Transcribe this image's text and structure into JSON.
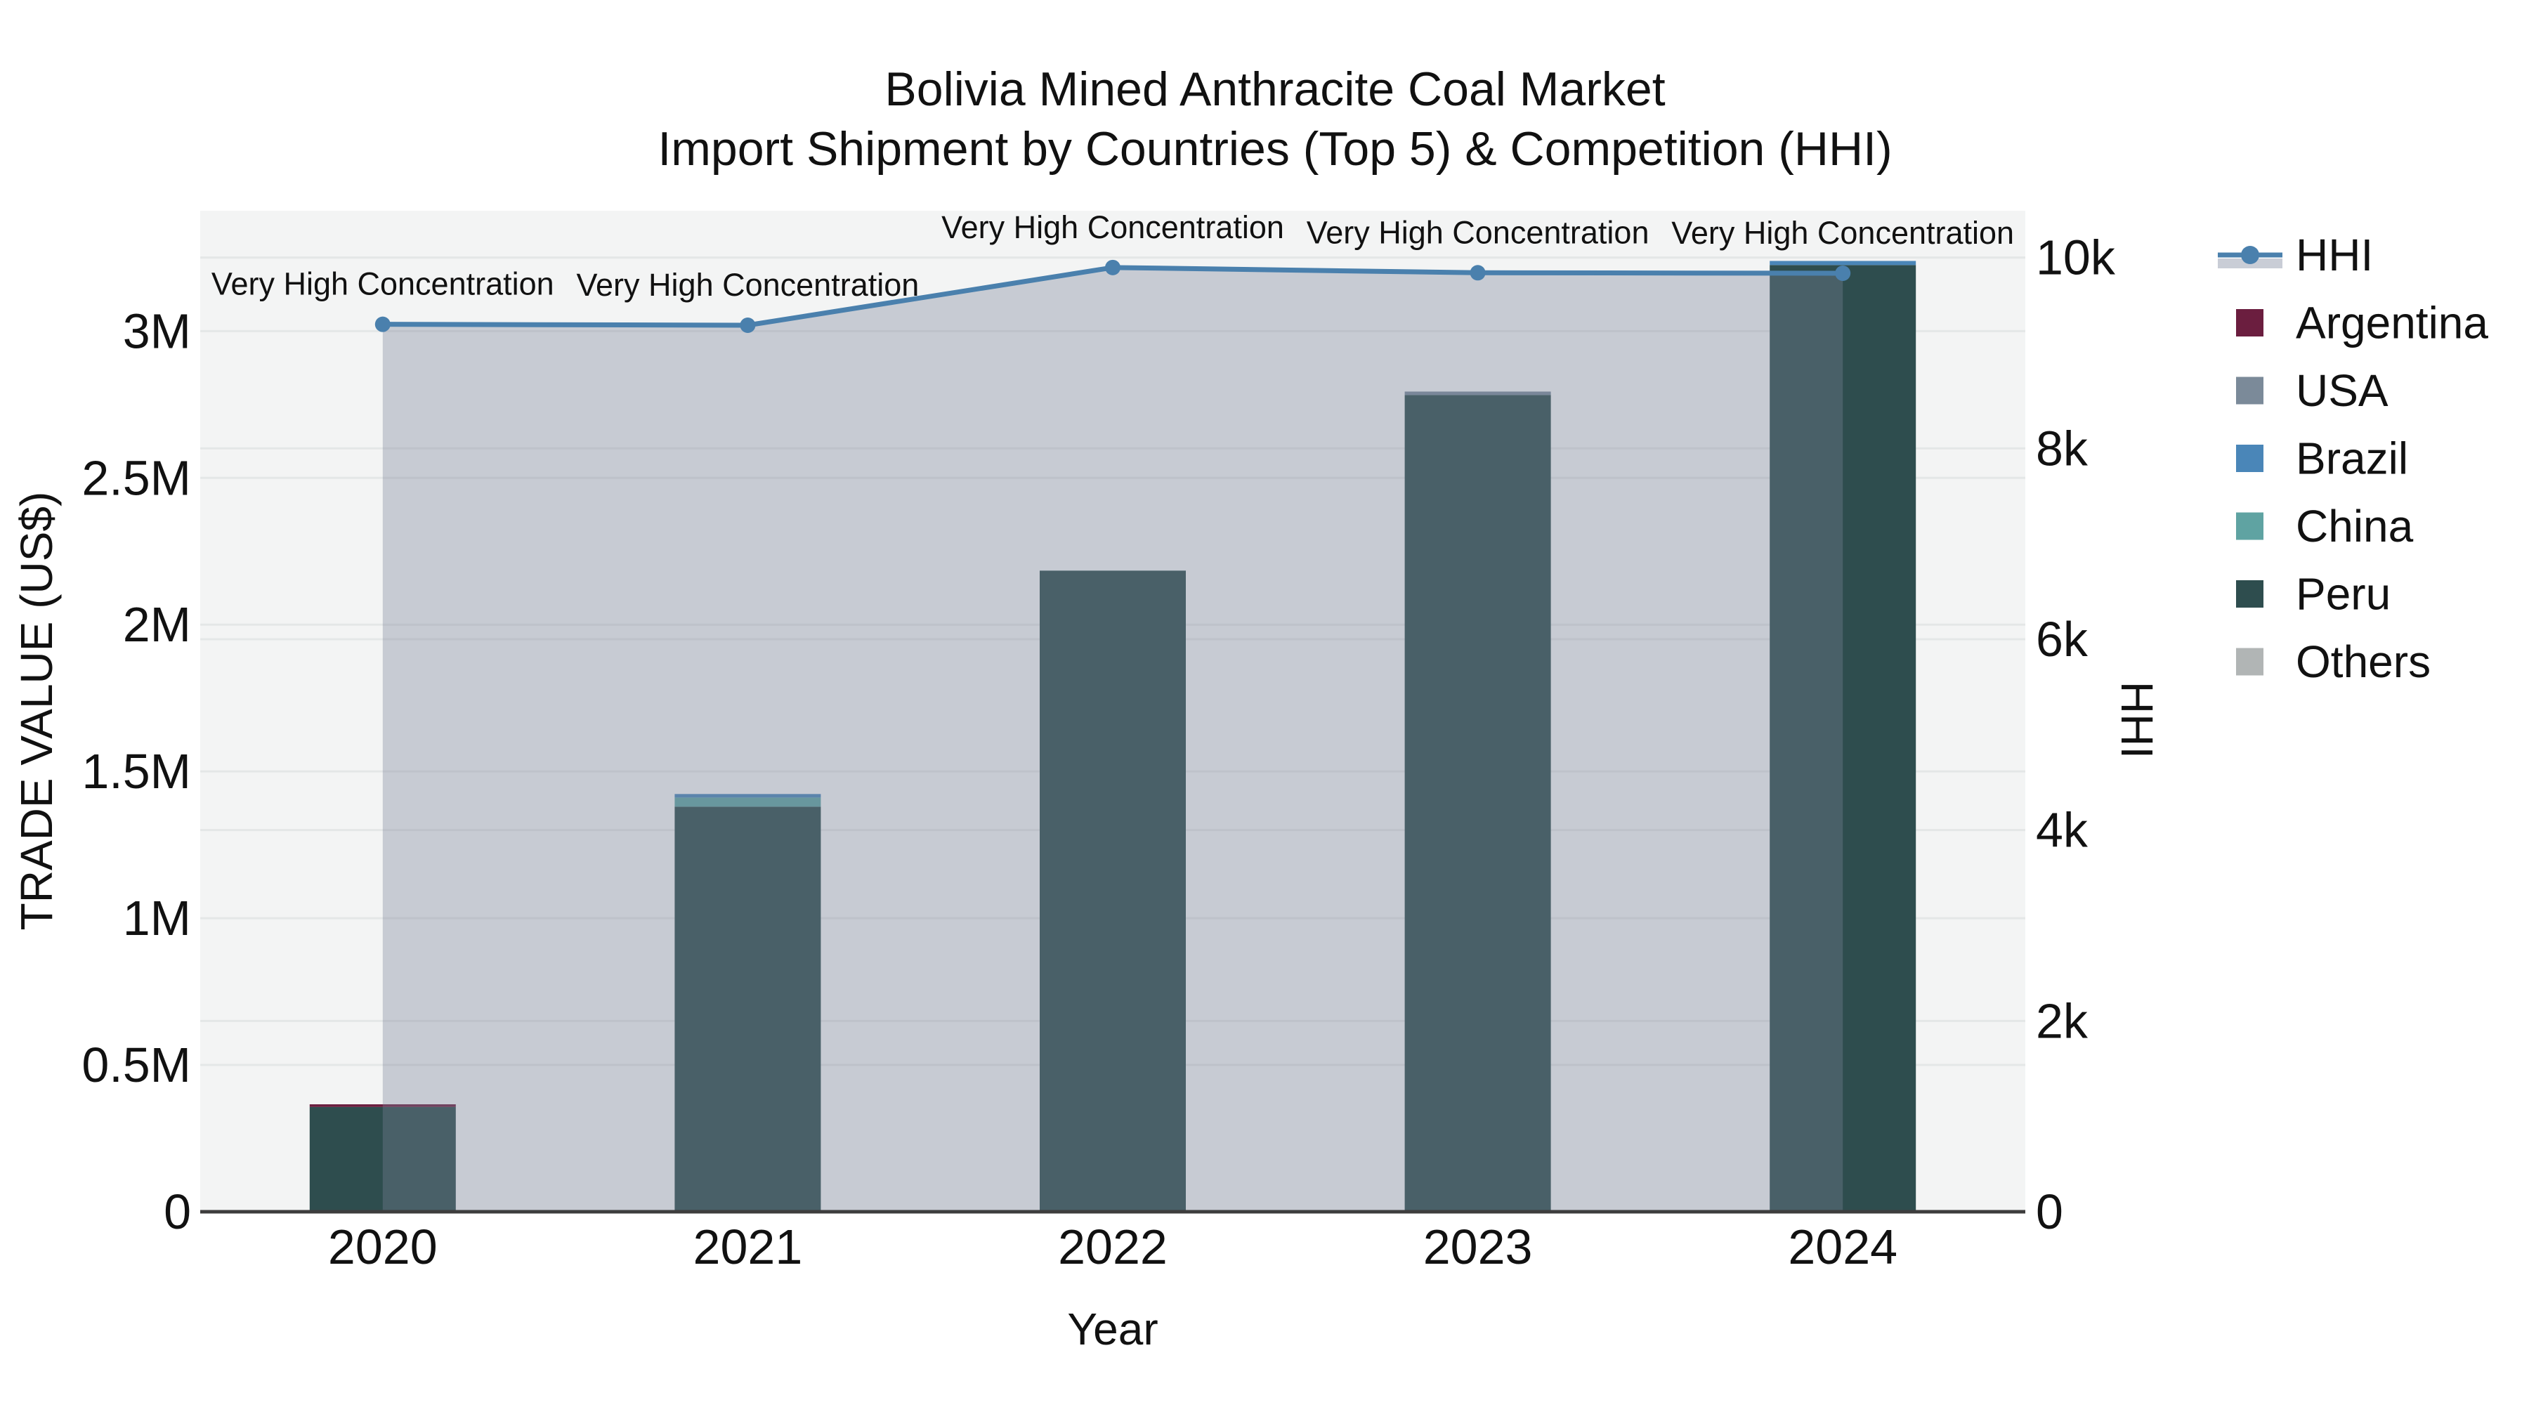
{
  "title": {
    "line1": "Bolivia Mined Anthracite Coal Market",
    "line2": "Import Shipment by Countries (Top 5) & Competition (HHI)"
  },
  "axes": {
    "x": {
      "title": "Year",
      "categories": [
        "2020",
        "2021",
        "2022",
        "2023",
        "2024"
      ]
    },
    "y_left": {
      "title": "TRADE VALUE (US$)",
      "tick_labels": [
        "0",
        "0.5M",
        "1M",
        "1.5M",
        "2M",
        "2.5M",
        "3M"
      ],
      "tick_values": [
        0,
        500000,
        1000000,
        1500000,
        2000000,
        2500000,
        3000000
      ],
      "range": [
        0,
        3410000
      ]
    },
    "y_right": {
      "title": "HHI",
      "tick_labels": [
        "0",
        "2k",
        "4k",
        "6k",
        "8k",
        "10k"
      ],
      "tick_values": [
        0,
        2000,
        4000,
        6000,
        8000,
        10000
      ],
      "range": [
        0,
        10490
      ]
    }
  },
  "chart_data": {
    "type": [
      "bar",
      "line"
    ],
    "bar_mode": "stacked",
    "categories": [
      "2020",
      "2021",
      "2022",
      "2023",
      "2024"
    ],
    "bar_series": [
      {
        "name": "Argentina",
        "color": "#6b1e3f",
        "values": [
          9000,
          0,
          0,
          0,
          0
        ]
      },
      {
        "name": "USA",
        "color": "#7b8a99",
        "values": [
          0,
          0,
          0,
          12000,
          0
        ]
      },
      {
        "name": "Brazil",
        "color": "#4a86b8",
        "values": [
          0,
          12000,
          0,
          0,
          14000
        ]
      },
      {
        "name": "China",
        "color": "#5fa3a2",
        "values": [
          0,
          31000,
          0,
          0,
          0
        ]
      },
      {
        "name": "Peru",
        "color": "#2e4d4e",
        "values": [
          357000,
          1380000,
          2184000,
          2782000,
          3225000
        ]
      },
      {
        "name": "Others",
        "color": "#b1b5b5",
        "values": [
          0,
          0,
          0,
          0,
          0
        ]
      }
    ],
    "bar_totals": [
      366000,
      1423000,
      2184000,
      2794000,
      3239000
    ],
    "line_series": {
      "name": "HHI",
      "color": "#4a80ad",
      "area_fill": "rgba(122,131,152,0.36)",
      "values": [
        9300,
        9290,
        9895,
        9840,
        9835
      ]
    },
    "annotations": [
      "Very High Concentration",
      "Very High Concentration",
      "Very High Concentration",
      "Very High Concentration",
      "Very High Concentration"
    ],
    "legend_position": "right",
    "grid": true
  },
  "legend": {
    "items": [
      {
        "label": "HHI",
        "type": "line",
        "color": "#4a80ad",
        "band": "#c9cdd6"
      },
      {
        "label": "Argentina",
        "type": "square",
        "color": "#6b1e3f"
      },
      {
        "label": "USA",
        "type": "square",
        "color": "#7b8a99"
      },
      {
        "label": "Brazil",
        "type": "square",
        "color": "#4a86b8"
      },
      {
        "label": "China",
        "type": "square",
        "color": "#5fa3a2"
      },
      {
        "label": "Peru",
        "type": "square",
        "color": "#2e4d4e"
      },
      {
        "label": "Others",
        "type": "square",
        "color": "#b1b5b5"
      }
    ]
  },
  "colors": {
    "plot_bg": "#f3f4f4",
    "grid": "#e4e7e7",
    "axis_line": "#3d3d3d",
    "text": "#111111"
  }
}
